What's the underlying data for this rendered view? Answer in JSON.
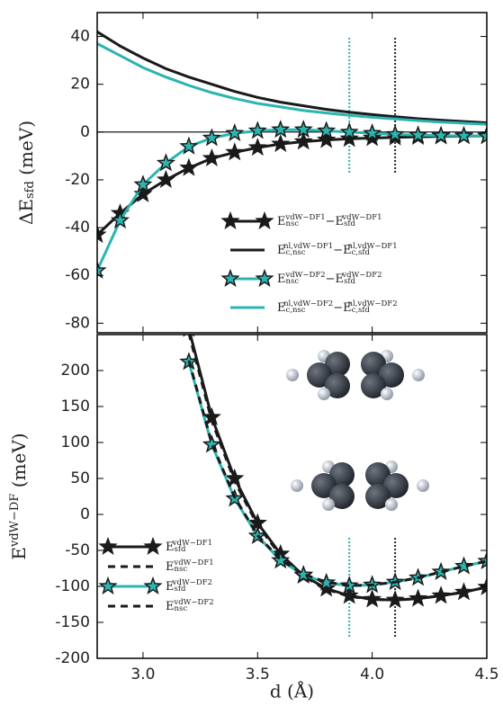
{
  "chart_data": [
    {
      "type": "line",
      "ylabel": "ΔE_{sfd} (meV)",
      "x": [
        2.8,
        2.9,
        3.0,
        3.1,
        3.2,
        3.3,
        3.4,
        3.5,
        3.6,
        3.7,
        3.8,
        3.9,
        4.0,
        4.1,
        4.2,
        4.3,
        4.4,
        4.5
      ],
      "xlim": [
        2.8,
        4.5
      ],
      "ylim": [
        -84,
        50
      ],
      "yticks": [
        -80,
        -60,
        -40,
        -20,
        0,
        20,
        40
      ],
      "hline": 0,
      "vlines": [
        {
          "x": 3.9,
          "color": "#2bb5b0",
          "span": [
            -17,
            40
          ]
        },
        {
          "x": 4.1,
          "color": "#222222",
          "span": [
            -17,
            40
          ]
        }
      ],
      "legend": "lower right",
      "series": [
        {
          "name": "E_{nsc}^{vdW−DF1}−E_{sfd}^{vdW−DF1}",
          "color": "#1a1a1a",
          "marker": "star",
          "linestyle": "solid",
          "values": [
            -43,
            -34,
            -26,
            -20,
            -15,
            -11,
            -8.5,
            -6.5,
            -5,
            -4,
            -3.3,
            -2.8,
            -2.5,
            -2.2,
            -2,
            -1.8,
            -1.7,
            -1.6
          ]
        },
        {
          "name": "E_{c,nsc}^{nl,vdW−DF1}−E_{c,sfd}^{nl,vdW−DF1}",
          "color": "#1a1a1a",
          "marker": "none",
          "linestyle": "solid",
          "values": [
            42,
            36,
            31,
            26.5,
            23,
            20,
            17,
            14.5,
            12.5,
            11,
            9.5,
            8.3,
            7.3,
            6.4,
            5.6,
            5,
            4.4,
            3.9
          ]
        },
        {
          "name": "E_{nsc}^{vdW−DF2}−E_{sfd}^{vdW−DF2}",
          "color": "#2bb5b0",
          "marker": "star",
          "linestyle": "solid",
          "values": [
            -58,
            -37,
            -22,
            -13,
            -6,
            -2.5,
            -0.5,
            0.5,
            1,
            1,
            0.5,
            0,
            -0.5,
            -1,
            -1.3,
            -1.5,
            -1.6,
            -1.7
          ]
        },
        {
          "name": "E_{c,nsc}^{nl,vdW−DF2}−E_{c,sfd}^{nl,vdW−DF2}",
          "color": "#2bb5b0",
          "marker": "none",
          "linestyle": "solid",
          "values": [
            37,
            32,
            27,
            23,
            19.5,
            16.5,
            14,
            12,
            10.5,
            9,
            8,
            7,
            6.2,
            5.5,
            4.8,
            4.2,
            3.7,
            3.2
          ]
        }
      ]
    },
    {
      "type": "line",
      "ylabel": "E^{vdW−DF} (meV)",
      "xlabel": "d (Å)",
      "x": [
        3.2,
        3.3,
        3.4,
        3.5,
        3.6,
        3.7,
        3.8,
        3.9,
        4.0,
        4.1,
        4.2,
        4.3,
        4.4,
        4.5
      ],
      "xlim": [
        2.8,
        4.5
      ],
      "xticks": [
        {
          "value": 3,
          "label": "3.0"
        },
        3.5,
        {
          "value": 4,
          "label": "4.0"
        },
        4.5
      ],
      "ylim": [
        -200,
        250
      ],
      "yticks": [
        -200,
        -150,
        -100,
        -50,
        0,
        50,
        100,
        150,
        200
      ],
      "vlines": [
        {
          "x": 3.9,
          "color": "#2bb5b0",
          "span": [
            -170,
            -30
          ]
        },
        {
          "x": 4.1,
          "color": "#222222",
          "span": [
            -170,
            -30
          ]
        }
      ],
      "legend": "lower left",
      "series": [
        {
          "name": "E_{sfd}^{vdW−DF1}",
          "color": "#1a1a1a",
          "marker": "star",
          "linestyle": "solid",
          "values": [
            258,
            135,
            50,
            -12,
            -55,
            -85,
            -103,
            -113,
            -118,
            -119,
            -117,
            -113,
            -108,
            -101
          ]
        },
        {
          "name": "E_{nsc}^{vdW−DF1}",
          "color": "#1a1a1a",
          "marker": "none",
          "linestyle": "dashed",
          "values": [
            252,
            130,
            46,
            -15,
            -57,
            -86,
            -104,
            -114,
            -118,
            -119,
            -117,
            -113,
            -108,
            -101
          ]
        },
        {
          "name": "E_{sfd}^{vdW−DF2}",
          "color": "#2bb5b0",
          "marker": "star",
          "linestyle": "solid",
          "values": [
            212,
            97,
            22,
            -30,
            -64,
            -84,
            -95,
            -99,
            -98,
            -94,
            -88,
            -80,
            -72,
            -65
          ]
        },
        {
          "name": "E_{nsc}^{vdW−DF2}",
          "color": "#1a1a1a",
          "marker": "none",
          "linestyle": "dashed",
          "values": [
            214,
            99,
            24,
            -29,
            -63,
            -83,
            -94,
            -99,
            -98,
            -94,
            -88,
            -80,
            -72,
            -65
          ]
        }
      ]
    }
  ]
}
